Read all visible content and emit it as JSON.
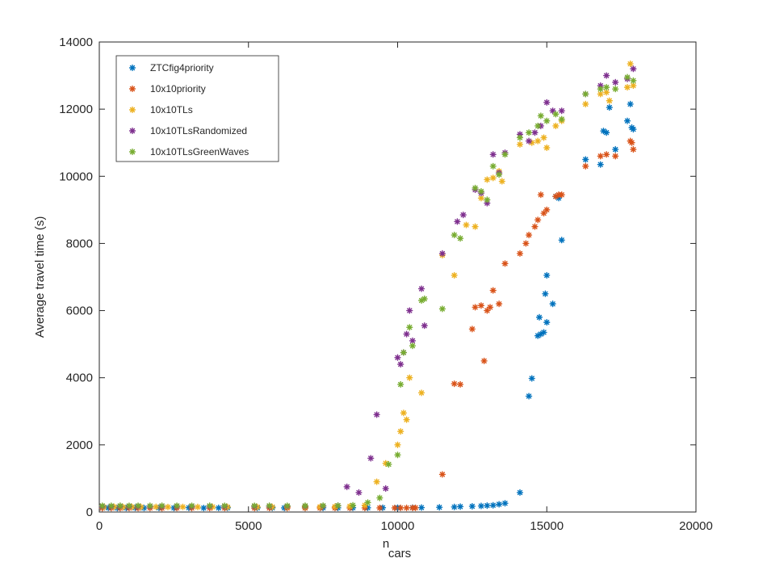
{
  "chart_data": {
    "type": "scatter",
    "xlabel": "n",
    "xlabel_subscript": "cars",
    "ylabel": "Average travel time (s)",
    "xlim": [
      0,
      20000
    ],
    "ylim": [
      0,
      14000
    ],
    "xticks": [
      0,
      5000,
      10000,
      15000,
      20000
    ],
    "yticks": [
      0,
      2000,
      4000,
      6000,
      8000,
      10000,
      12000,
      14000
    ],
    "grid": false,
    "legend_position": "top-left",
    "series": [
      {
        "name": "ZTCfig4priority",
        "color": "#0072BD",
        "points": [
          [
            100,
            120
          ],
          [
            300,
            125
          ],
          [
            600,
            118
          ],
          [
            900,
            122
          ],
          [
            1200,
            126
          ],
          [
            1500,
            120
          ],
          [
            2000,
            124
          ],
          [
            2500,
            121
          ],
          [
            3000,
            127
          ],
          [
            3500,
            119
          ],
          [
            4000,
            123
          ],
          [
            4300,
            125
          ],
          [
            5300,
            124
          ],
          [
            5800,
            126
          ],
          [
            6200,
            121
          ],
          [
            6900,
            123
          ],
          [
            7500,
            125
          ],
          [
            8000,
            124
          ],
          [
            8500,
            126
          ],
          [
            9000,
            125
          ],
          [
            9500,
            127
          ],
          [
            10000,
            128
          ],
          [
            10500,
            130
          ],
          [
            10800,
            132
          ],
          [
            11400,
            140
          ],
          [
            11900,
            150
          ],
          [
            12100,
            160
          ],
          [
            12500,
            170
          ],
          [
            12800,
            180
          ],
          [
            13000,
            190
          ],
          [
            13200,
            200
          ],
          [
            13400,
            230
          ],
          [
            13600,
            260
          ],
          [
            14100,
            580
          ],
          [
            14400,
            3450
          ],
          [
            14500,
            3980
          ],
          [
            14700,
            5250
          ],
          [
            14750,
            5800
          ],
          [
            14800,
            5300
          ],
          [
            14900,
            5350
          ],
          [
            14950,
            6500
          ],
          [
            15000,
            5650
          ],
          [
            15000,
            7050
          ],
          [
            15200,
            6200
          ],
          [
            15300,
            9400
          ],
          [
            15400,
            9350
          ],
          [
            15500,
            8100
          ],
          [
            16300,
            10500
          ],
          [
            16800,
            10350
          ],
          [
            16900,
            11350
          ],
          [
            17000,
            11300
          ],
          [
            17100,
            12050
          ],
          [
            17300,
            10800
          ],
          [
            17700,
            11650
          ],
          [
            17800,
            12150
          ],
          [
            17850,
            11450
          ],
          [
            17900,
            11400
          ]
        ]
      },
      {
        "name": "10x10priority",
        "color": "#D95319",
        "points": [
          [
            100,
            115
          ],
          [
            400,
            118
          ],
          [
            700,
            116
          ],
          [
            1000,
            119
          ],
          [
            1300,
            117
          ],
          [
            1700,
            118
          ],
          [
            2100,
            116
          ],
          [
            2600,
            119
          ],
          [
            3100,
            118
          ],
          [
            3700,
            117
          ],
          [
            4200,
            119
          ],
          [
            5200,
            118
          ],
          [
            5700,
            120
          ],
          [
            6300,
            119
          ],
          [
            6900,
            118
          ],
          [
            7400,
            119
          ],
          [
            7900,
            120
          ],
          [
            8400,
            120
          ],
          [
            8900,
            121
          ],
          [
            9400,
            121
          ],
          [
            9900,
            122
          ],
          [
            10100,
            123
          ],
          [
            10300,
            123
          ],
          [
            10500,
            124
          ],
          [
            10600,
            125
          ],
          [
            11500,
            1120
          ],
          [
            11900,
            3820
          ],
          [
            12100,
            3800
          ],
          [
            12500,
            5450
          ],
          [
            12600,
            6100
          ],
          [
            12800,
            6150
          ],
          [
            12900,
            4500
          ],
          [
            13000,
            6000
          ],
          [
            13100,
            6100
          ],
          [
            13200,
            6600
          ],
          [
            13400,
            6200
          ],
          [
            13600,
            7400
          ],
          [
            14100,
            7700
          ],
          [
            14300,
            8000
          ],
          [
            14400,
            8250
          ],
          [
            14600,
            8500
          ],
          [
            14700,
            8700
          ],
          [
            14800,
            9450
          ],
          [
            14900,
            8900
          ],
          [
            15000,
            9000
          ],
          [
            15300,
            9400
          ],
          [
            15400,
            9450
          ],
          [
            15500,
            9450
          ],
          [
            16300,
            10300
          ],
          [
            16800,
            10600
          ],
          [
            17000,
            10650
          ],
          [
            17300,
            10600
          ],
          [
            17800,
            11050
          ],
          [
            17850,
            11000
          ],
          [
            17900,
            10800
          ]
        ]
      },
      {
        "name": "10x10TLs",
        "color": "#EDB120",
        "points": [
          [
            150,
            150
          ],
          [
            500,
            155
          ],
          [
            800,
            148
          ],
          [
            1100,
            152
          ],
          [
            1400,
            150
          ],
          [
            1900,
            153
          ],
          [
            2300,
            149
          ],
          [
            2800,
            152
          ],
          [
            3300,
            150
          ],
          [
            3800,
            151
          ],
          [
            4300,
            150
          ],
          [
            5300,
            150
          ],
          [
            5800,
            152
          ],
          [
            6300,
            150
          ],
          [
            6900,
            151
          ],
          [
            7400,
            155
          ],
          [
            7900,
            160
          ],
          [
            8400,
            170
          ],
          [
            8900,
            200
          ],
          [
            9300,
            900
          ],
          [
            9600,
            1450
          ],
          [
            10000,
            2000
          ],
          [
            10100,
            2400
          ],
          [
            10200,
            2950
          ],
          [
            10300,
            2750
          ],
          [
            10400,
            4000
          ],
          [
            10800,
            3550
          ],
          [
            11500,
            7650
          ],
          [
            11900,
            7050
          ],
          [
            12300,
            8550
          ],
          [
            12600,
            8500
          ],
          [
            12800,
            9350
          ],
          [
            13000,
            9900
          ],
          [
            13200,
            9950
          ],
          [
            13400,
            10150
          ],
          [
            13500,
            9850
          ],
          [
            14100,
            10950
          ],
          [
            14500,
            11000
          ],
          [
            14700,
            11050
          ],
          [
            14900,
            11150
          ],
          [
            15000,
            10850
          ],
          [
            15300,
            11500
          ],
          [
            15500,
            11650
          ],
          [
            16300,
            12150
          ],
          [
            16800,
            12450
          ],
          [
            17000,
            12500
          ],
          [
            17100,
            12250
          ],
          [
            17700,
            12650
          ],
          [
            17800,
            13350
          ],
          [
            17900,
            12700
          ]
        ]
      },
      {
        "name": "10x10TLsRandomized",
        "color": "#7E2F8E",
        "points": [
          [
            100,
            170
          ],
          [
            400,
            168
          ],
          [
            700,
            172
          ],
          [
            1000,
            170
          ],
          [
            1300,
            169
          ],
          [
            1700,
            171
          ],
          [
            2100,
            170
          ],
          [
            2600,
            172
          ],
          [
            3100,
            170
          ],
          [
            3700,
            171
          ],
          [
            4200,
            170
          ],
          [
            5200,
            170
          ],
          [
            5700,
            172
          ],
          [
            6300,
            171
          ],
          [
            6900,
            173
          ],
          [
            7500,
            175
          ],
          [
            8000,
            190
          ],
          [
            8300,
            750
          ],
          [
            8700,
            580
          ],
          [
            9100,
            1600
          ],
          [
            9300,
            2900
          ],
          [
            9600,
            700
          ],
          [
            10000,
            4600
          ],
          [
            10100,
            4400
          ],
          [
            10200,
            4750
          ],
          [
            10300,
            5300
          ],
          [
            10400,
            6000
          ],
          [
            10500,
            5100
          ],
          [
            10800,
            6650
          ],
          [
            10900,
            5550
          ],
          [
            11500,
            7700
          ],
          [
            12000,
            8650
          ],
          [
            12200,
            8850
          ],
          [
            12600,
            9600
          ],
          [
            12800,
            9500
          ],
          [
            13000,
            9200
          ],
          [
            13200,
            10650
          ],
          [
            13400,
            10100
          ],
          [
            13600,
            10700
          ],
          [
            14100,
            11250
          ],
          [
            14400,
            11050
          ],
          [
            14600,
            11300
          ],
          [
            14800,
            11500
          ],
          [
            15000,
            12200
          ],
          [
            15200,
            11950
          ],
          [
            15500,
            11950
          ],
          [
            16300,
            12450
          ],
          [
            16800,
            12700
          ],
          [
            17000,
            13000
          ],
          [
            17300,
            12800
          ],
          [
            17700,
            12900
          ],
          [
            17900,
            13200
          ]
        ]
      },
      {
        "name": "10x10TLsGreenWaves",
        "color": "#77AC30",
        "points": [
          [
            100,
            185
          ],
          [
            400,
            183
          ],
          [
            700,
            186
          ],
          [
            1000,
            184
          ],
          [
            1300,
            185
          ],
          [
            1700,
            183
          ],
          [
            2100,
            186
          ],
          [
            2600,
            184
          ],
          [
            3100,
            185
          ],
          [
            3700,
            186
          ],
          [
            4200,
            185
          ],
          [
            5200,
            184
          ],
          [
            5700,
            186
          ],
          [
            6300,
            185
          ],
          [
            6900,
            186
          ],
          [
            7500,
            188
          ],
          [
            8000,
            190
          ],
          [
            8500,
            200
          ],
          [
            9000,
            280
          ],
          [
            9400,
            420
          ],
          [
            9700,
            1420
          ],
          [
            10000,
            1700
          ],
          [
            10100,
            3800
          ],
          [
            10200,
            4750
          ],
          [
            10400,
            5500
          ],
          [
            10500,
            4950
          ],
          [
            10800,
            6300
          ],
          [
            10900,
            6350
          ],
          [
            11500,
            6050
          ],
          [
            11900,
            8250
          ],
          [
            12100,
            8150
          ],
          [
            12600,
            9650
          ],
          [
            12800,
            9550
          ],
          [
            13000,
            9300
          ],
          [
            13200,
            10300
          ],
          [
            13400,
            10050
          ],
          [
            13600,
            10650
          ],
          [
            14100,
            11150
          ],
          [
            14400,
            11300
          ],
          [
            14700,
            11500
          ],
          [
            14800,
            11800
          ],
          [
            15000,
            11650
          ],
          [
            15300,
            11850
          ],
          [
            15500,
            11700
          ],
          [
            16300,
            12450
          ],
          [
            16800,
            12600
          ],
          [
            17000,
            12650
          ],
          [
            17300,
            12600
          ],
          [
            17700,
            12950
          ],
          [
            17900,
            12850
          ]
        ]
      }
    ]
  }
}
